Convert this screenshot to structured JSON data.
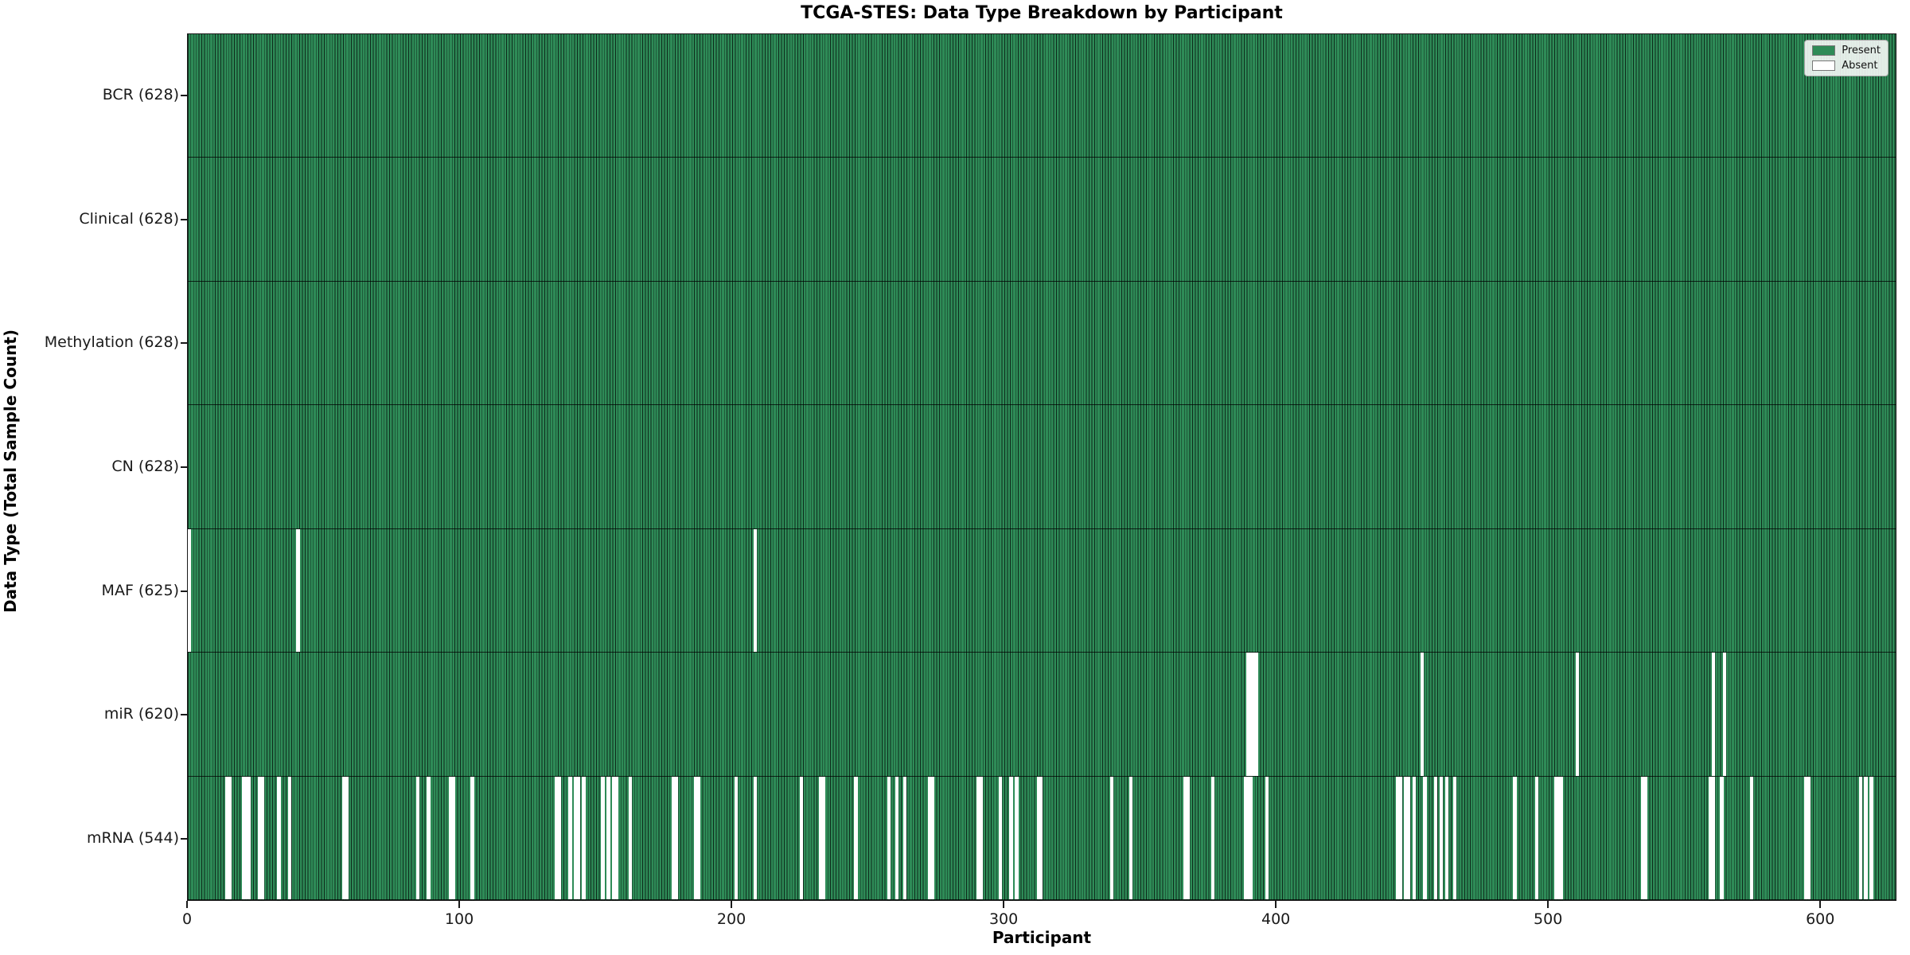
{
  "chart_data": {
    "type": "heatmap",
    "title": "TCGA-STES: Data Type Breakdown by Participant",
    "xlabel": "Participant",
    "ylabel": "Data Type (Total Sample Count)",
    "n_participants": 628,
    "x_ticks": [
      0,
      100,
      200,
      300,
      400,
      500,
      600
    ],
    "legend": [
      {
        "label": "Present",
        "color": "#2E8B57"
      },
      {
        "label": "Absent",
        "color": "#FFFFFF"
      }
    ],
    "colors": {
      "present": "#2E8B57",
      "absent": "#FFFFFF",
      "bar_edge": "#0d2a1b"
    },
    "rows": [
      {
        "label": "BCR (628)",
        "data_type": "BCR",
        "present_count": 628,
        "absent_participants": []
      },
      {
        "label": "Clinical (628)",
        "data_type": "Clinical",
        "present_count": 628,
        "absent_participants": []
      },
      {
        "label": "Methylation (628)",
        "data_type": "Methylation",
        "present_count": 628,
        "absent_participants": []
      },
      {
        "label": "CN (628)",
        "data_type": "CN",
        "present_count": 628,
        "absent_participants": []
      },
      {
        "label": "MAF (625)",
        "data_type": "MAF",
        "present_count": 625,
        "absent_participants": [
          0,
          40,
          208
        ]
      },
      {
        "label": "miR (620)",
        "data_type": "miR",
        "present_count": 620,
        "absent_participants": [
          389,
          390,
          391,
          392,
          453,
          510,
          560,
          564
        ]
      },
      {
        "label": "mRNA (544)",
        "data_type": "mRNA",
        "present_count": 544,
        "absent_participants": [
          14,
          15,
          20,
          21,
          22,
          26,
          27,
          33,
          37,
          57,
          58,
          84,
          88,
          96,
          97,
          104,
          135,
          136,
          140,
          142,
          143,
          145,
          152,
          154,
          156,
          157,
          162,
          178,
          179,
          186,
          187,
          201,
          208,
          225,
          232,
          233,
          245,
          257,
          260,
          263,
          272,
          273,
          290,
          291,
          298,
          302,
          304,
          312,
          313,
          339,
          346,
          366,
          367,
          376,
          388,
          389,
          390,
          396,
          444,
          445,
          447,
          448,
          450,
          454,
          458,
          460,
          462,
          465,
          487,
          495,
          502,
          503,
          504,
          534,
          535,
          559,
          560,
          563,
          574,
          594,
          595,
          614,
          616,
          618
        ]
      }
    ]
  }
}
